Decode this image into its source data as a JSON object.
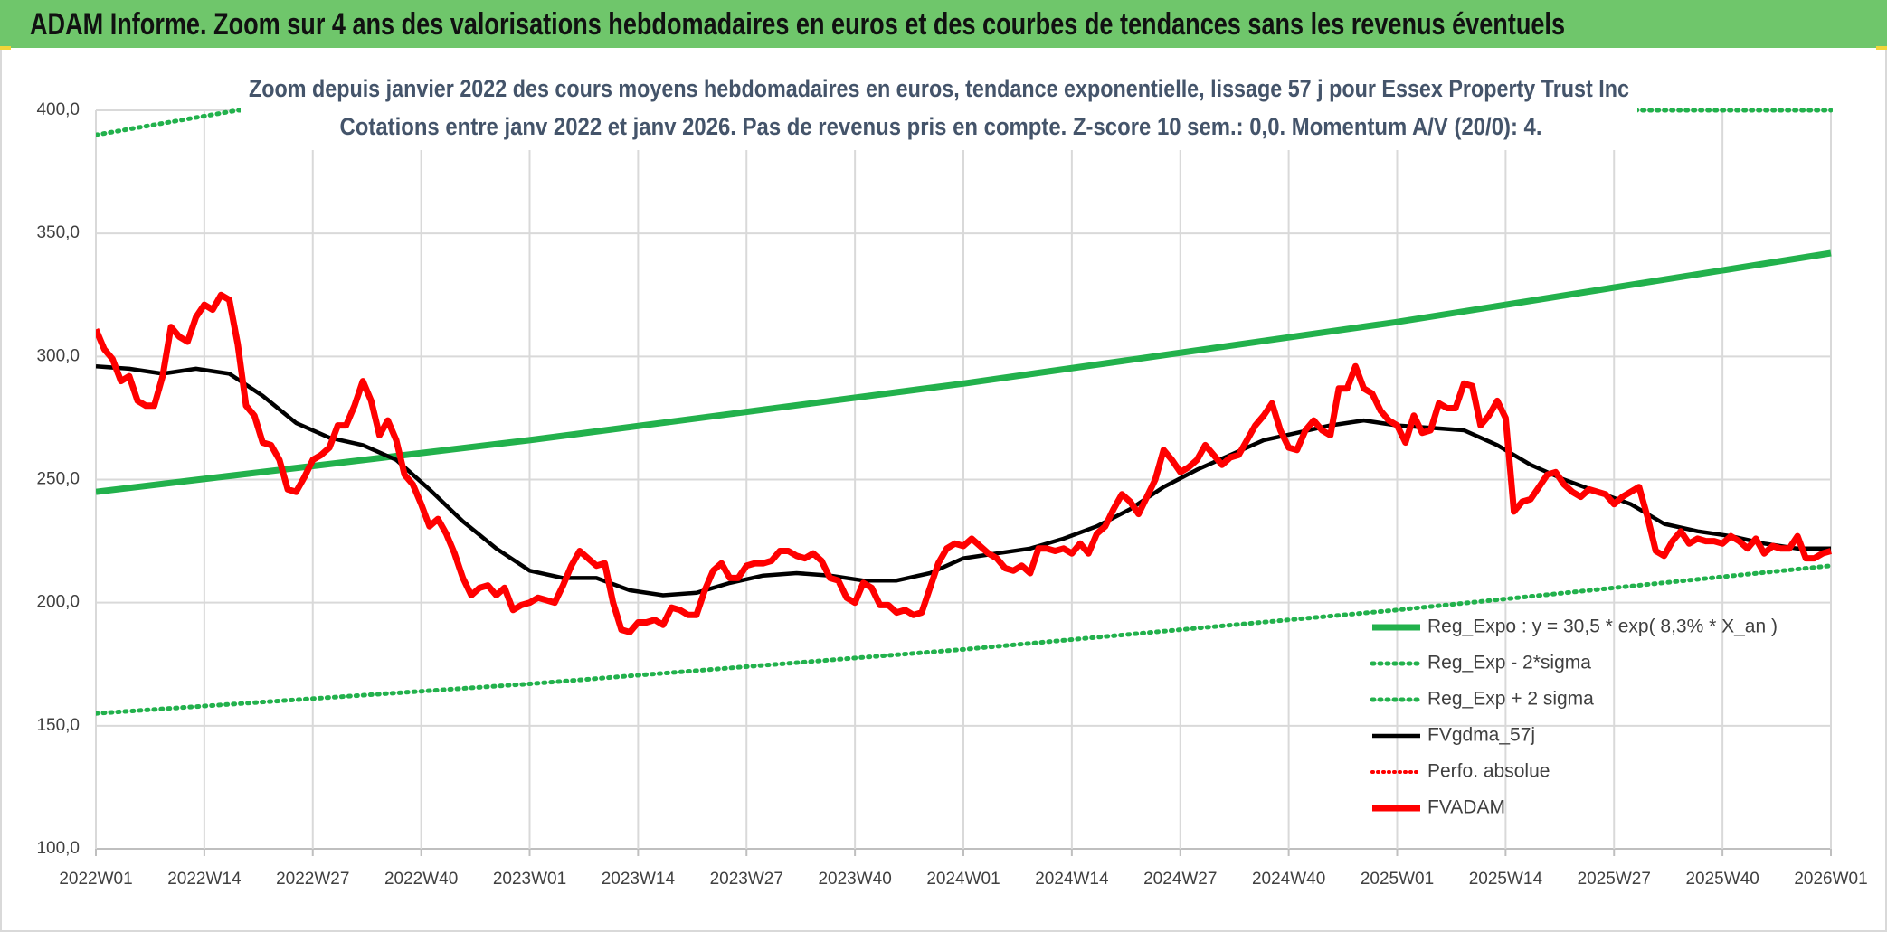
{
  "chart_data": {
    "type": "line",
    "header": "ADAM Informe. Zoom sur 4 ans des valorisations hebdomadaires en euros et des courbes de tendances sans les revenus éventuels",
    "title": "Zoom depuis janvier 2022 des cours moyens hebdomadaires en euros, tendance exponentielle, lissage 57 j pour Essex Property Trust Inc",
    "subtitle": "Cotations entre janv 2022 et janv 2026. Pas de revenus pris en compte. Z-score 10 sem.: 0,0. Momentum A/V (20/0): 4.",
    "xlim": [
      0,
      208
    ],
    "xticks": [
      {
        "value": 0,
        "label": "2022W01"
      },
      {
        "value": 13,
        "label": "2022W14"
      },
      {
        "value": 26,
        "label": "2022W27"
      },
      {
        "value": 39,
        "label": "2022W40"
      },
      {
        "value": 52,
        "label": "2023W01"
      },
      {
        "value": 65,
        "label": "2023W14"
      },
      {
        "value": 78,
        "label": "2023W27"
      },
      {
        "value": 91,
        "label": "2023W40"
      },
      {
        "value": 104,
        "label": "2024W01"
      },
      {
        "value": 117,
        "label": "2024W14"
      },
      {
        "value": 130,
        "label": "2024W27"
      },
      {
        "value": 143,
        "label": "2024W40"
      },
      {
        "value": 156,
        "label": "2025W01"
      },
      {
        "value": 169,
        "label": "2025W14"
      },
      {
        "value": 182,
        "label": "2025W27"
      },
      {
        "value": 195,
        "label": "2025W40"
      },
      {
        "value": 208,
        "label": "2026W01"
      }
    ],
    "ylim": [
      100,
      400
    ],
    "yticks": [
      {
        "value": 100,
        "label": "100,0"
      },
      {
        "value": 150,
        "label": "150,0"
      },
      {
        "value": 200,
        "label": "200,0"
      },
      {
        "value": 250,
        "label": "250,0"
      },
      {
        "value": 300,
        "label": "300,0"
      },
      {
        "value": 350,
        "label": "350,0"
      },
      {
        "value": 400,
        "label": "400,0"
      }
    ],
    "grid": true,
    "series": [
      {
        "name": "Reg_Expo : y = 30,5 * exp( 8,3% *  X_an )",
        "color": "#22b14c",
        "line": "thick",
        "x": [
          0,
          52,
          104,
          156,
          208
        ],
        "values": [
          245,
          266,
          289,
          314,
          342
        ]
      },
      {
        "name": "Reg_Exp - 2*sigma",
        "color": "#22b14c",
        "line": "dotted",
        "x": [
          0,
          52,
          104,
          156,
          208
        ],
        "values": [
          155,
          167,
          181,
          197,
          215
        ]
      },
      {
        "name": "Reg_Exp + 2 sigma",
        "color": "#22b14c",
        "line": "dotted",
        "x": [
          0,
          17,
          208
        ],
        "values": [
          390,
          400,
          400
        ]
      },
      {
        "name": "FVgdma_57j",
        "color": "#000000",
        "line": "normal",
        "x": [
          0,
          4,
          8,
          12,
          16,
          20,
          24,
          28,
          32,
          36,
          40,
          44,
          48,
          52,
          56,
          60,
          64,
          68,
          72,
          76,
          80,
          84,
          88,
          92,
          96,
          100,
          104,
          108,
          112,
          116,
          120,
          124,
          128,
          132,
          136,
          140,
          144,
          148,
          152,
          156,
          160,
          164,
          168,
          172,
          176,
          180,
          184,
          188,
          192,
          196,
          200,
          204,
          208
        ],
        "values": [
          296,
          295,
          293,
          295,
          293,
          284,
          273,
          267,
          264,
          258,
          246,
          233,
          222,
          213,
          210,
          210,
          205,
          203,
          204,
          208,
          211,
          212,
          211,
          209,
          209,
          212,
          218,
          220,
          222,
          226,
          231,
          238,
          247,
          254,
          260,
          266,
          269,
          272,
          274,
          272,
          271,
          270,
          264,
          256,
          250,
          245,
          240,
          232,
          229,
          227,
          224,
          222,
          222
        ]
      },
      {
        "name": "Perfo. absolue",
        "color": "#ff0000",
        "line": "dotted-thin",
        "x": [],
        "values": []
      },
      {
        "name": "FVADAM",
        "color": "#ff0000",
        "line": "bold",
        "x": [
          0,
          1,
          2,
          3,
          4,
          5,
          6,
          7,
          8,
          9,
          10,
          11,
          12,
          13,
          14,
          15,
          16,
          17,
          18,
          19,
          20,
          21,
          22,
          23,
          24,
          25,
          26,
          27,
          28,
          29,
          30,
          31,
          32,
          33,
          34,
          35,
          36,
          37,
          38,
          39,
          40,
          41,
          42,
          43,
          44,
          45,
          46,
          47,
          48,
          49,
          50,
          51,
          52,
          53,
          54,
          55,
          56,
          57,
          58,
          59,
          60,
          61,
          62,
          63,
          64,
          65,
          66,
          67,
          68,
          69,
          70,
          71,
          72,
          73,
          74,
          75,
          76,
          77,
          78,
          79,
          80,
          81,
          82,
          83,
          84,
          85,
          86,
          87,
          88,
          89,
          90,
          91,
          92,
          93,
          94,
          95,
          96,
          97,
          98,
          99,
          100,
          101,
          102,
          103,
          104,
          105,
          106,
          107,
          108,
          109,
          110,
          111,
          112,
          113,
          114,
          115,
          116,
          117,
          118,
          119,
          120,
          121,
          122,
          123,
          124,
          125,
          126,
          127,
          128,
          129,
          130,
          131,
          132,
          133,
          134,
          135,
          136,
          137,
          138,
          139,
          140,
          141,
          142,
          143,
          144,
          145,
          146,
          147,
          148,
          149,
          150,
          151,
          152,
          153,
          154,
          155,
          156,
          157,
          158,
          159,
          160,
          161,
          162,
          163,
          164,
          165,
          166,
          167,
          168,
          169,
          170,
          171,
          172,
          173,
          174,
          175,
          176,
          177,
          178,
          179,
          180,
          181,
          182,
          183,
          184,
          185,
          186,
          187,
          188,
          189,
          190,
          191,
          192,
          193,
          194,
          195,
          196,
          197,
          198,
          199,
          200,
          201,
          202,
          203,
          204,
          205,
          206,
          207,
          208
        ],
        "values": [
          311,
          303,
          299,
          290,
          292,
          282,
          280,
          280,
          292,
          312,
          308,
          306,
          316,
          321,
          319,
          325,
          323,
          305,
          280,
          276,
          265,
          264,
          258,
          246,
          245,
          251,
          258,
          260,
          263,
          272,
          272,
          280,
          290,
          282,
          268,
          274,
          266,
          252,
          248,
          240,
          231,
          234,
          228,
          220,
          210,
          203,
          206,
          207,
          203,
          206,
          197,
          199,
          200,
          202,
          201,
          200,
          207,
          215,
          221,
          218,
          215,
          216,
          200,
          189,
          188,
          192,
          192,
          193,
          191,
          198,
          197,
          195,
          195,
          205,
          213,
          216,
          210,
          210,
          215,
          216,
          216,
          217,
          221,
          221,
          219,
          218,
          220,
          217,
          210,
          209,
          202,
          200,
          208,
          206,
          199,
          199,
          196,
          197,
          195,
          196,
          206,
          216,
          222,
          224,
          223,
          226,
          223,
          220,
          218,
          214,
          213,
          215,
          212,
          222,
          222,
          221,
          222,
          220,
          224,
          220,
          228,
          231,
          238,
          244,
          241,
          236,
          243,
          250,
          262,
          258,
          253,
          255,
          258,
          264,
          260,
          256,
          259,
          260,
          266,
          272,
          276,
          281,
          270,
          263,
          262,
          270,
          274,
          270,
          268,
          287,
          287,
          296,
          287,
          285,
          278,
          274,
          272,
          265,
          276,
          269,
          270,
          281,
          279,
          279,
          289,
          288,
          272,
          276,
          282,
          275,
          237,
          241,
          242,
          247,
          252,
          253,
          248,
          245,
          243,
          246,
          245,
          244,
          240,
          243,
          245,
          247,
          235,
          221,
          219,
          225,
          229,
          224,
          226,
          225,
          225,
          224,
          227,
          225,
          222,
          226,
          220,
          223,
          222,
          222,
          227,
          218,
          218,
          220,
          221
        ]
      }
    ]
  }
}
